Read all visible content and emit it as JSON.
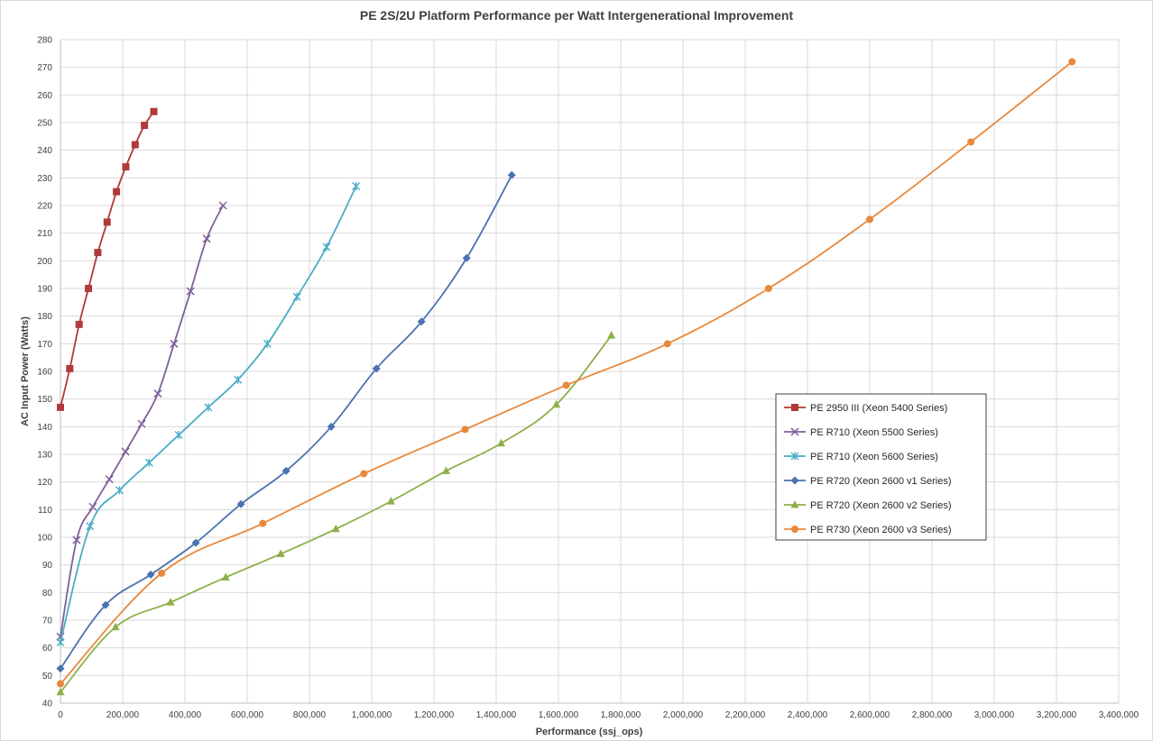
{
  "chart_data": {
    "type": "line",
    "title": "PE 2S/2U Platform Performance per Watt  Intergenerational Improvement",
    "xlabel": "Performance (ssj_ops)",
    "ylabel": "AC Input Power (Watts)",
    "xlim": [
      0,
      3400000
    ],
    "ylim": [
      40,
      280
    ],
    "x_ticks": [
      "0",
      "200,000",
      "400,000",
      "600,000",
      "800,000",
      "1,000,000",
      "1,200,000",
      "1,400,000",
      "1,600,000",
      "1,800,000",
      "2,000,000",
      "2,200,000",
      "2,400,000",
      "2,600,000",
      "2,800,000",
      "3,000,000",
      "3,200,000",
      "3,400,000"
    ],
    "y_ticks": [
      "40",
      "50",
      "60",
      "70",
      "80",
      "90",
      "100",
      "110",
      "120",
      "130",
      "140",
      "150",
      "160",
      "170",
      "180",
      "190",
      "200",
      "210",
      "220",
      "230",
      "240",
      "250",
      "260",
      "270",
      "280"
    ],
    "grid": true,
    "legend_position": "right",
    "series": [
      {
        "name": "PE 2950 III (Xeon 5400 Series)",
        "color": "#b0393a",
        "marker": "square",
        "x": [
          0,
          30000,
          60000,
          90000,
          120000,
          150000,
          180000,
          210000,
          240000,
          270000,
          300000
        ],
        "y": [
          147,
          161,
          177,
          190,
          203,
          214,
          225,
          234,
          242,
          249,
          254
        ]
      },
      {
        "name": "PE R710 (Xeon 5500 Series)",
        "color": "#7f5f9b",
        "marker": "x",
        "x": [
          0,
          52000,
          104000,
          157000,
          209000,
          261000,
          313000,
          365000,
          418000,
          470000,
          522000
        ],
        "y": [
          64,
          99,
          111,
          121,
          131,
          141,
          152,
          170,
          189,
          208,
          220
        ]
      },
      {
        "name": "PE R710 (Xeon 5600 Series)",
        "color": "#4bacc6",
        "marker": "star",
        "x": [
          0,
          95000,
          190000,
          285000,
          380000,
          475000,
          570000,
          665000,
          760000,
          855000,
          950000
        ],
        "y": [
          62,
          104,
          117,
          127,
          137,
          147,
          157,
          170,
          187,
          205,
          227
        ]
      },
      {
        "name": "PE R720 (Xeon 2600 v1 Series)",
        "color": "#4a72b0",
        "marker": "diamond",
        "x": [
          0,
          145000,
          290000,
          435000,
          580000,
          725000,
          870000,
          1015000,
          1160000,
          1305000,
          1450000
        ],
        "y": [
          52.5,
          75.5,
          86.5,
          98,
          112,
          124,
          140,
          161,
          178,
          201,
          231
        ]
      },
      {
        "name": "PE R720 (Xeon 2600 v2 Series)",
        "color": "#8db04a",
        "marker": "triangle",
        "x": [
          0,
          177000,
          354000,
          531000,
          708000,
          885000,
          1062000,
          1239000,
          1416000,
          1593000,
          1770000
        ],
        "y": [
          44,
          67.5,
          76.5,
          85.5,
          94,
          103,
          113,
          124,
          134,
          148,
          173
        ]
      },
      {
        "name": "PE R730 (Xeon 2600 v3 Series)",
        "color": "#e8883a",
        "marker": "circle",
        "x": [
          0,
          325000,
          650000,
          975000,
          1300000,
          1625000,
          1950000,
          2275000,
          2600000,
          2925000,
          3250000
        ],
        "y": [
          47,
          87,
          105,
          123,
          139,
          155,
          170,
          190,
          215,
          243,
          272
        ]
      }
    ]
  }
}
